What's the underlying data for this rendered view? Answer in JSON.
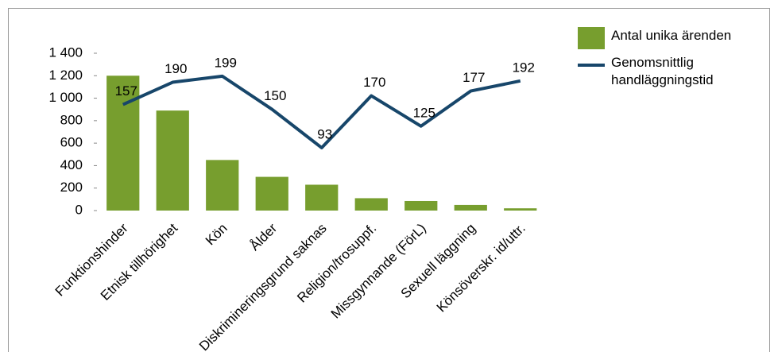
{
  "chart_data": {
    "type": "bar",
    "categories": [
      "Funktionshinder",
      "Etnisk tillhörighet",
      "Kön",
      "Ålder",
      "Diskrimineringsgrund saknas",
      "Religion/trosuppf.",
      "Missgynnande (FörL)",
      "Sexuell läggning",
      "Könsöverskr. id/uttr."
    ],
    "series": [
      {
        "name": "Antal unika ärenden",
        "type": "bar",
        "color": "#779e2e",
        "values": [
          1200,
          890,
          450,
          300,
          230,
          110,
          85,
          50,
          20
        ]
      },
      {
        "name": "Genomsnittlig handläggningstid",
        "type": "line",
        "axis": "y2",
        "color": "#17466a",
        "values": [
          157,
          190,
          199,
          150,
          93,
          170,
          125,
          177,
          192
        ]
      }
    ],
    "ylim": [
      0,
      1400
    ],
    "yticks": [
      0,
      200,
      400,
      600,
      800,
      {
        "value": 1000,
        "label": "1 000"
      },
      {
        "value": 1200,
        "label": "1 200"
      },
      {
        "value": 1400,
        "label": "1 400"
      }
    ],
    "y2lim": [
      0,
      233
    ],
    "legend": "right"
  }
}
